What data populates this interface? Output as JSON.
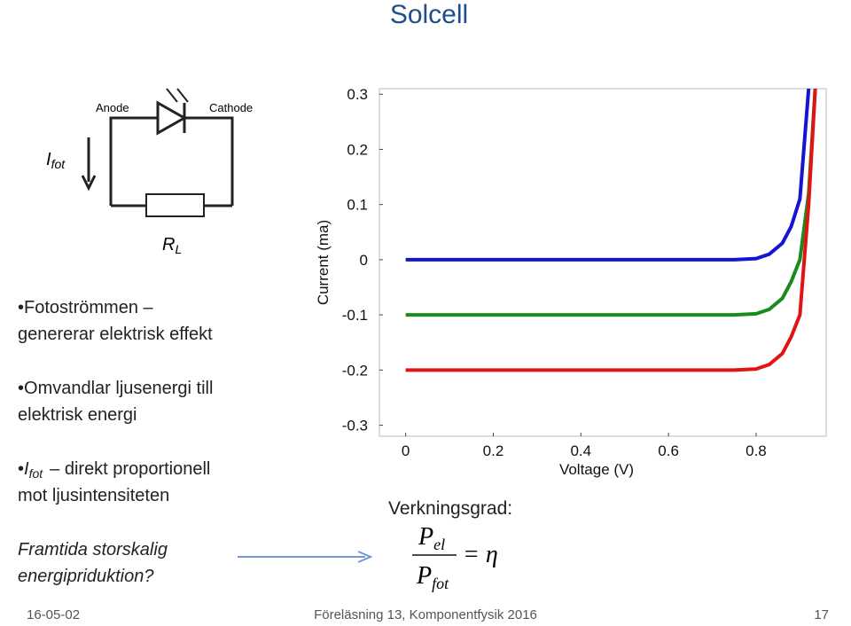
{
  "title": "Solcell",
  "diagram": {
    "anode": "Anode",
    "cathode": "Cathode",
    "current": {
      "symbol": "I",
      "sub": "fot"
    },
    "resistor": {
      "symbol": "R",
      "sub": "L"
    }
  },
  "bullets": [
    [
      "Fotoströmmen –",
      "genererar elektrisk effekt"
    ],
    [
      "Omvandlar ljusenergi till",
      "elektrisk energi"
    ]
  ],
  "bullet3": {
    "symbol": "I",
    "sub": "fot",
    "lines": [
      "– direkt proportionell",
      "mot ljusintensiteten"
    ]
  },
  "question": [
    "Framtida storskalig",
    "energipriduktion?"
  ],
  "efficiency": {
    "label": "Verkningsgrad:",
    "numerator": {
      "symbol": "P",
      "sub": "el"
    },
    "denominator": {
      "symbol": "P",
      "sub": "fot"
    },
    "result": "= η"
  },
  "footer": {
    "date": "16-05-02",
    "center": "Föreläsning 13, Komponentfysik 2016",
    "page": "17"
  },
  "chart_data": {
    "type": "line",
    "xlabel": "Voltage (V)",
    "ylabel": "Current (ma)",
    "x": [
      0,
      0.2,
      0.4,
      0.6,
      0.75,
      0.8,
      0.83,
      0.86,
      0.88,
      0.9,
      0.92,
      0.935
    ],
    "series": [
      {
        "color": "#1414d2",
        "values": [
          0,
          0,
          0,
          0,
          0,
          0.002,
          0.01,
          0.03,
          0.06,
          0.11,
          0.31,
          null
        ]
      },
      {
        "color": "#1a8a1a",
        "values": [
          -0.1,
          -0.1,
          -0.1,
          -0.1,
          -0.1,
          -0.098,
          -0.09,
          -0.07,
          -0.04,
          0,
          0.12,
          0.31
        ]
      },
      {
        "color": "#e01414",
        "values": [
          -0.2,
          -0.2,
          -0.2,
          -0.2,
          -0.2,
          -0.198,
          -0.19,
          -0.17,
          -0.14,
          -0.1,
          0.1,
          0.31
        ]
      }
    ],
    "xlim": [
      -0.06,
      0.96
    ],
    "ylim": [
      -0.32,
      0.31
    ],
    "xticks": [
      0,
      0.2,
      0.4,
      0.6,
      0.8
    ],
    "yticks": [
      0.3,
      0.2,
      0.1,
      0,
      -0.1,
      -0.2,
      -0.3
    ]
  }
}
